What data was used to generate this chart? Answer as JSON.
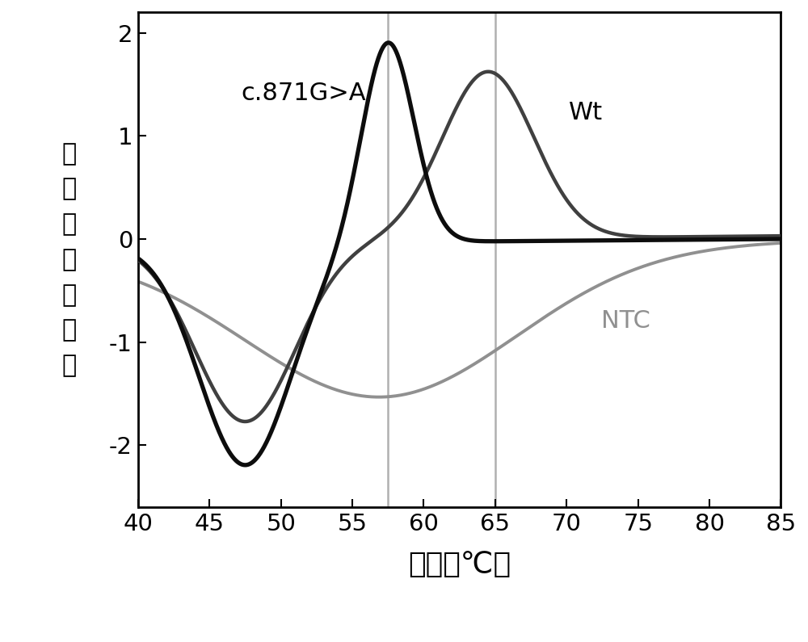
{
  "xlim": [
    40,
    85
  ],
  "ylim": [
    -2.6,
    2.2
  ],
  "xticks": [
    40,
    45,
    50,
    55,
    60,
    65,
    70,
    75,
    80,
    85
  ],
  "yticks": [
    -2,
    -1,
    0,
    1,
    2
  ],
  "vline1": 57.5,
  "vline2": 65.0,
  "xlabel": "温度（℃）",
  "ylabel_chars": [
    "荧",
    "光",
    "信",
    "号",
    "倒",
    "数",
    "值"
  ],
  "label_c871": "c.871G>A",
  "label_wt": "Wt",
  "label_ntc": "NTC",
  "color_black1": "#0d0d0d",
  "color_black2": "#404040",
  "color_gray": "#909090",
  "vline_color": "#b0b0b0",
  "bg_color": "#ffffff",
  "figsize": [
    10.0,
    7.95
  ],
  "dpi": 100
}
